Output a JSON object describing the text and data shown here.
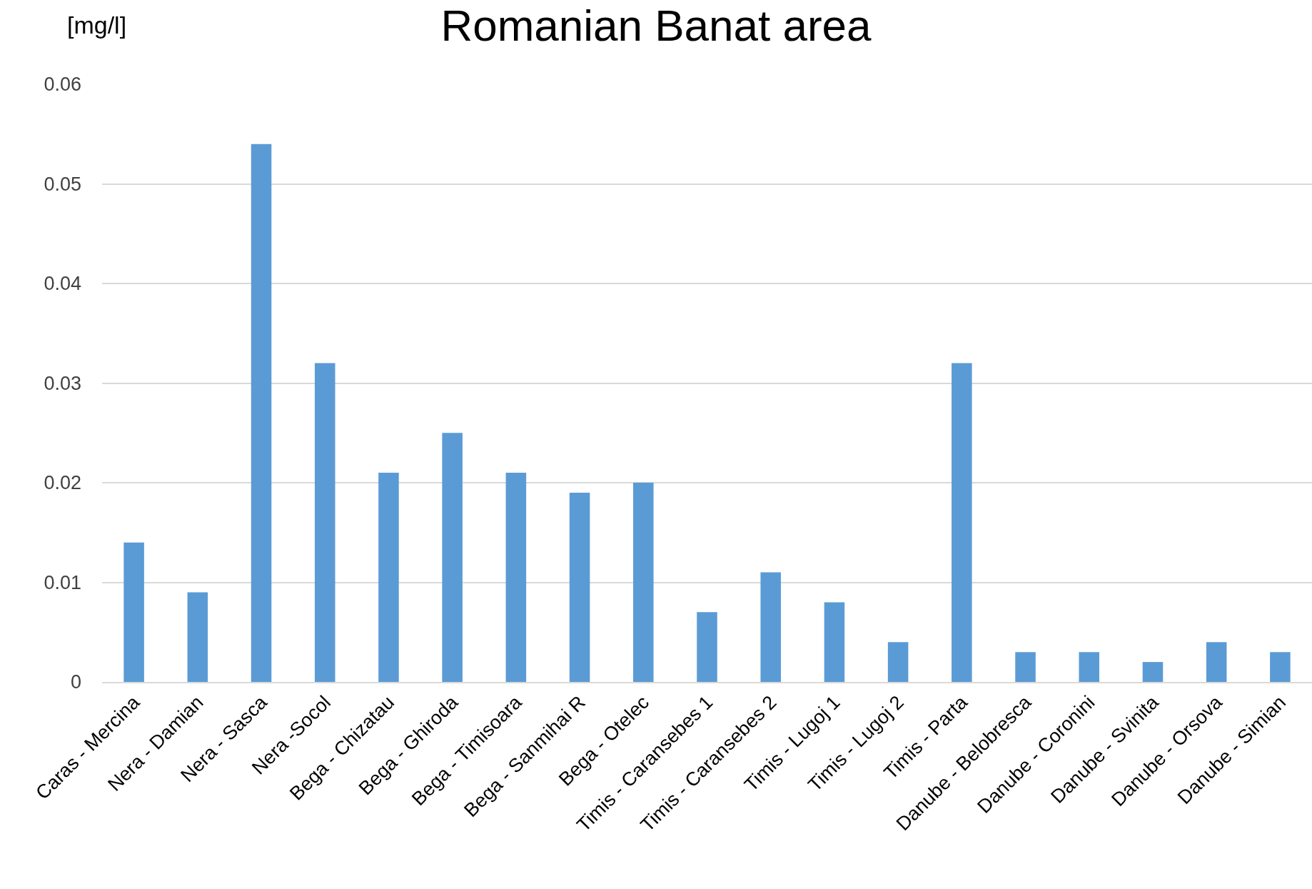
{
  "chart_data": {
    "type": "bar",
    "title": "Romanian Banat area",
    "ylabel": "[mg/l]",
    "categories": [
      "Caras - Mercina",
      "Nera - Damian",
      "Nera - Sasca",
      "Nera -Socol",
      "Bega - Chizatau",
      "Bega - Ghiroda",
      "Bega - Timisoara",
      "Bega - Sanmihai R",
      "Bega - Otelec",
      "Timis - Caransebes 1",
      "Timis - Caransebes 2",
      "Timis - Lugoj 1",
      "Timis - Lugoj 2",
      "Timis - Parta",
      "Danube - Belobresca",
      "Danube - Coronini",
      "Danube - Svinita",
      "Danube - Orsova",
      "Danube - Simian"
    ],
    "values": [
      0.014,
      0.009,
      0.054,
      0.032,
      0.021,
      0.025,
      0.021,
      0.019,
      0.02,
      0.007,
      0.011,
      0.008,
      0.004,
      0.032,
      0.003,
      0.003,
      0.002,
      0.004,
      0.003
    ],
    "color": "#5b9bd5",
    "ylim": [
      0,
      0.06
    ],
    "yticks": [
      {
        "value": 0,
        "label": "0"
      },
      0.01,
      0.02,
      0.03,
      0.04,
      0.05,
      0.06
    ],
    "grid": "y"
  }
}
